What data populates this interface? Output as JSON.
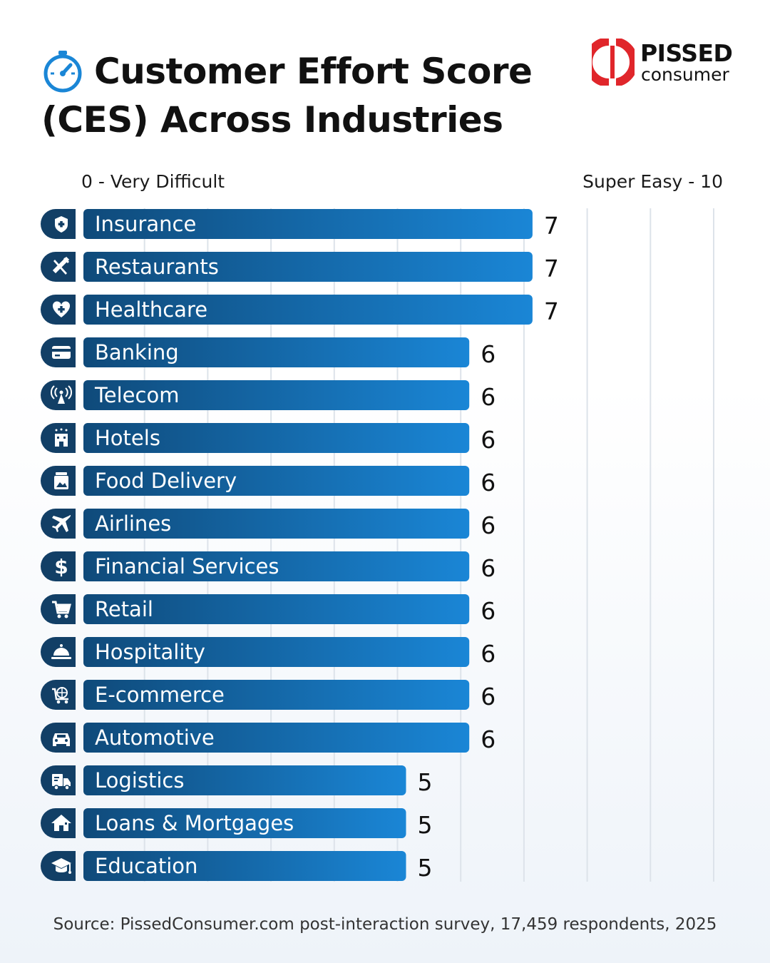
{
  "header": {
    "title_line1": "Customer Effort Score",
    "title_line2": "(CES) Across Industries",
    "icon": "stopwatch-gauge-icon"
  },
  "logo": {
    "word1": "PISSED",
    "word2": "consumer",
    "color": "#e0262b"
  },
  "colors": {
    "bar_start": "#0f4a7a",
    "bar_end": "#1a86d6",
    "icon_badge": "#123f66",
    "gridline": "#dde3ea"
  },
  "chart_data": {
    "type": "bar",
    "orientation": "horizontal",
    "xlabel_min": "0 - Very Difficult",
    "xlabel_max": "Super Easy - 10",
    "xlim": [
      0,
      10
    ],
    "grid": true,
    "categories": [
      "Insurance",
      "Restaurants",
      "Healthcare",
      "Banking",
      "Telecom",
      "Hotels",
      "Food Delivery",
      "Airlines",
      "Financial Services",
      "Retail",
      "Hospitality",
      "E-commerce",
      "Automotive",
      "Logistics",
      "Loans & Mortgages",
      "Education"
    ],
    "values": [
      7,
      7,
      7,
      6,
      6,
      6,
      6,
      6,
      6,
      6,
      6,
      6,
      6,
      5,
      5,
      5
    ],
    "icons": [
      "shield-icon",
      "fork-knife-icon",
      "heart-plus-icon",
      "credit-card-icon",
      "antenna-icon",
      "hotel-icon",
      "food-jar-icon",
      "airplane-icon",
      "dollar-icon",
      "cart-icon",
      "cloche-icon",
      "globe-cart-icon",
      "car-icon",
      "truck-icon",
      "house-icon",
      "graduation-cap-icon"
    ]
  },
  "footer": {
    "source": "Source: PissedConsumer.com post-interaction survey, 17,459 respondents, 2025"
  }
}
